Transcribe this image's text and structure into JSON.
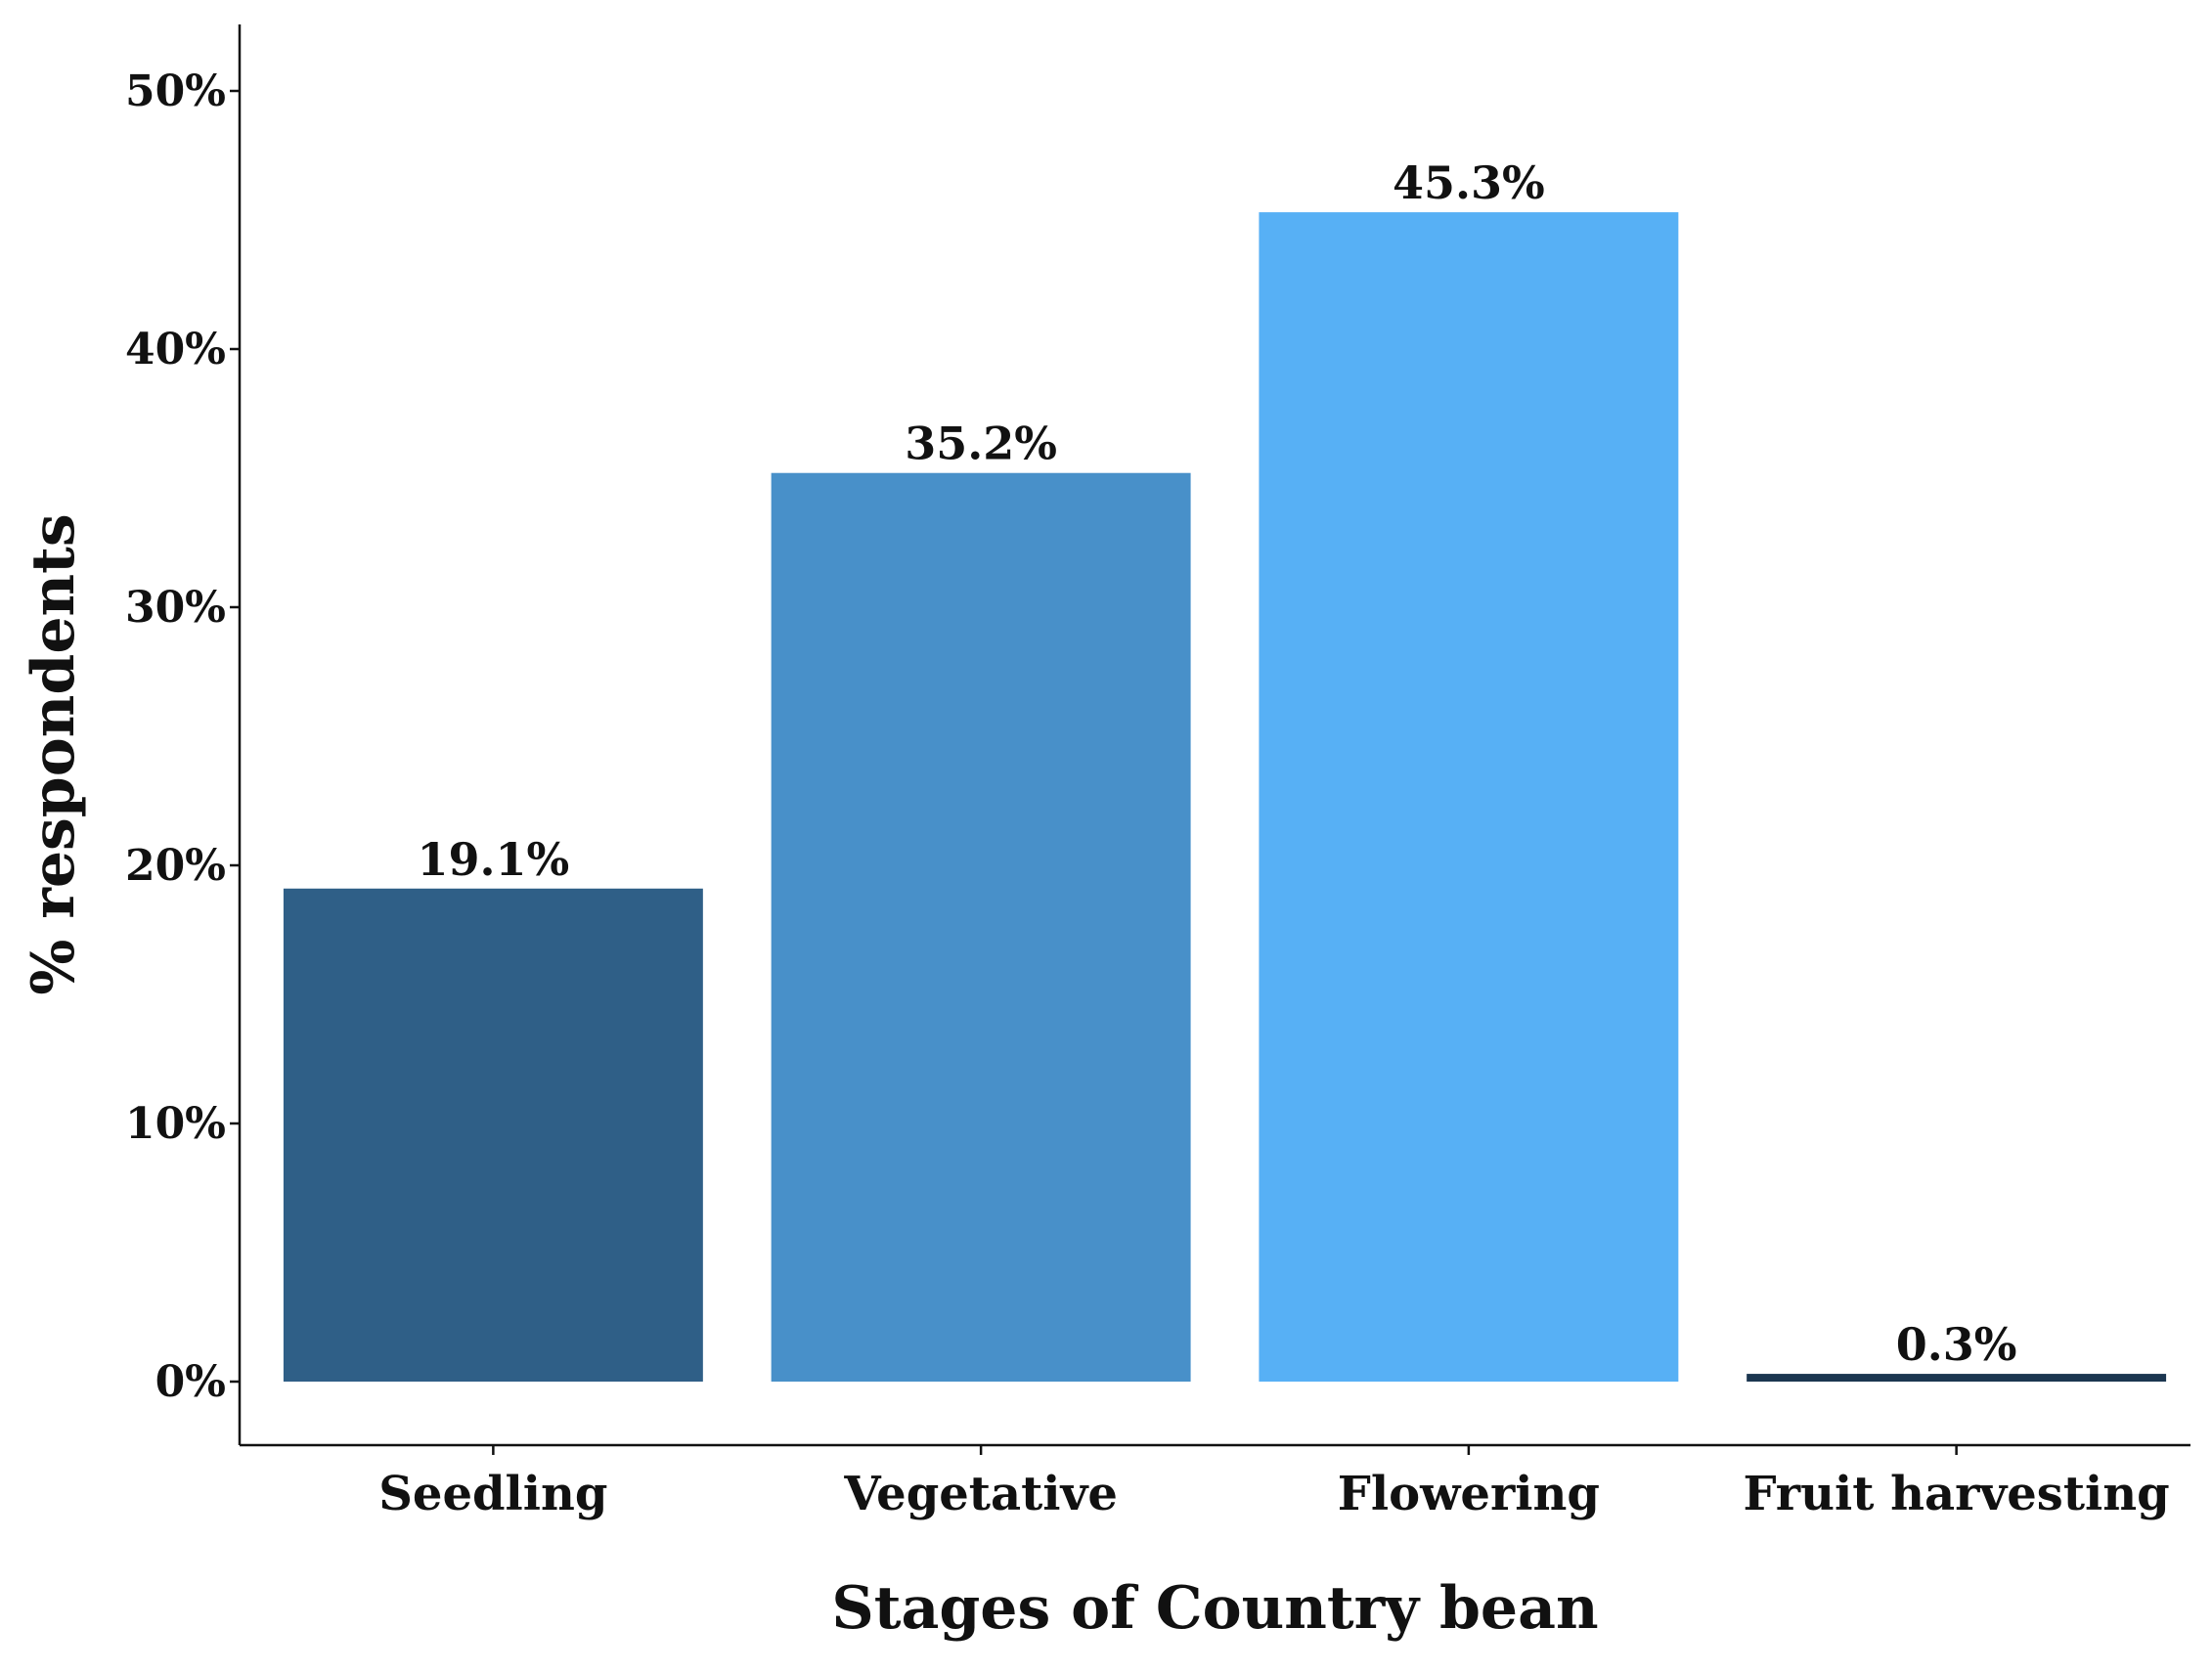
{
  "chart_data": {
    "type": "bar",
    "categories": [
      "Seedling",
      "Vegetative",
      "Flowering",
      "Fruit harvesting"
    ],
    "values": [
      19.1,
      35.2,
      45.3,
      0.3
    ],
    "value_labels": [
      "19.1%",
      "35.2%",
      "45.3%",
      "0.3%"
    ],
    "colors": [
      "#2f5f87",
      "#4890c9",
      "#57b0f5",
      "#1b3650"
    ],
    "xlabel": "Stages of Country bean",
    "ylabel": "% respondents",
    "ylim": [
      0,
      50
    ],
    "yticks": [
      0,
      10,
      20,
      30,
      40,
      50
    ],
    "ytick_labels": [
      "0%",
      "10%",
      "20%",
      "30%",
      "40%",
      "50%"
    ],
    "grid": false,
    "legend": "none"
  }
}
